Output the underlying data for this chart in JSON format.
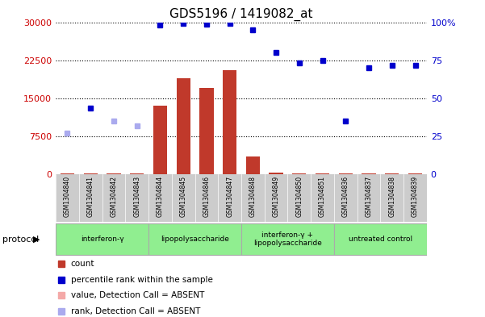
{
  "title": "GDS5196 / 1419082_at",
  "samples": [
    "GSM1304840",
    "GSM1304841",
    "GSM1304842",
    "GSM1304843",
    "GSM1304844",
    "GSM1304845",
    "GSM1304846",
    "GSM1304847",
    "GSM1304848",
    "GSM1304849",
    "GSM1304850",
    "GSM1304851",
    "GSM1304836",
    "GSM1304837",
    "GSM1304838",
    "GSM1304839"
  ],
  "count_values": [
    200,
    250,
    150,
    200,
    13500,
    19000,
    17000,
    20500,
    3500,
    350,
    200,
    150,
    200,
    250,
    200,
    250
  ],
  "count_absent": [
    false,
    false,
    false,
    false,
    false,
    false,
    false,
    false,
    false,
    false,
    false,
    false,
    false,
    false,
    false,
    false
  ],
  "rank_values": [
    8200,
    13000,
    10500,
    9500,
    29500,
    29700,
    29600,
    29800,
    28500,
    24000,
    22000,
    22500,
    10500,
    21000,
    21500,
    21500
  ],
  "rank_absent": [
    true,
    false,
    true,
    true,
    false,
    false,
    false,
    false,
    false,
    false,
    false,
    false,
    false,
    false,
    false,
    false
  ],
  "protocols": [
    {
      "label": "interferon-γ",
      "start": 0,
      "end": 4
    },
    {
      "label": "lipopolysaccharide",
      "start": 4,
      "end": 8
    },
    {
      "label": "interferon-γ +\nlipopolysaccharide",
      "start": 8,
      "end": 12
    },
    {
      "label": "untreated control",
      "start": 12,
      "end": 16
    }
  ],
  "ylim_left": [
    0,
    30000
  ],
  "ylim_right": [
    0,
    100
  ],
  "yticks_left": [
    0,
    7500,
    15000,
    22500,
    30000
  ],
  "yticks_right": [
    0,
    25,
    50,
    75,
    100
  ],
  "bar_color": "#c0392b",
  "bar_absent_color": "#f4a9a8",
  "dot_color": "#0000cc",
  "dot_absent_color": "#aaaaee",
  "protocol_color": "#90ee90",
  "bg_color": "#ffffff",
  "xtick_bg": "#cccccc",
  "title_fontsize": 11,
  "axis_color_left": "#cc0000",
  "axis_color_right": "#0000cc"
}
